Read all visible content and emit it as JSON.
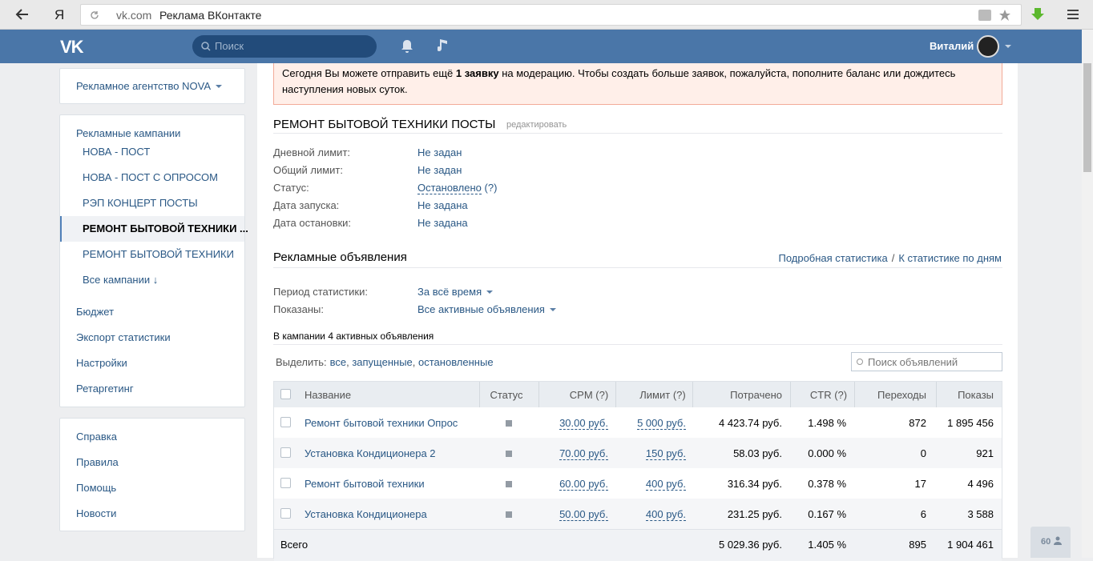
{
  "browser": {
    "logo": "Я",
    "host": "vk.com",
    "title": "Реклама ВКонтакте"
  },
  "header": {
    "logo": "VK",
    "search_placeholder": "Поиск",
    "user_name": "Виталий"
  },
  "sidebar": {
    "agency": "Рекламное агентство NOVA",
    "campaigns_title": "Рекламные кампании",
    "campaigns": [
      "НОВА - ПОСТ",
      "НОВА - ПОСТ С ОПРОСОМ",
      "РЭП КОНЦЕРТ ПОСТЫ",
      "РЕМОНТ БЫТОВОЙ ТЕХНИКИ ...",
      "РЕМОНТ БЫТОВОЙ ТЕХНИКИ",
      "Все кампании ↓"
    ],
    "menu": [
      "Бюджет",
      "Экспорт статистики",
      "Настройки",
      "Ретаргетинг"
    ],
    "links": [
      "Справка",
      "Правила",
      "Помощь",
      "Новости"
    ]
  },
  "notice": {
    "before": "Сегодня Вы можете отправить ещё ",
    "bold": "1 заявку",
    "after": " на модерацию. Чтобы создать больше заявок, пожалуйста, пополните баланс или дождитесь наступления новых суток."
  },
  "campaign": {
    "title": "РЕМОНТ БЫТОВОЙ ТЕХНИКИ ПОСТЫ",
    "edit": "редактировать",
    "info": [
      {
        "label": "Дневной лимит:",
        "value": "Не задан"
      },
      {
        "label": "Общий лимит:",
        "value": "Не задан"
      },
      {
        "label": "Статус:",
        "value": "Остановлено",
        "hint": "(?)"
      },
      {
        "label": "Дата запуска:",
        "value": "Не задана"
      },
      {
        "label": "Дата остановки:",
        "value": "Не задана"
      }
    ]
  },
  "ads": {
    "title": "Рекламные объявления",
    "stats_links": [
      "Подробная статистика",
      "К статистике по дням"
    ],
    "stats_separator": "/",
    "filters": [
      {
        "label": "Период статистики:",
        "value": "За всё время"
      },
      {
        "label": "Показаны:",
        "value": "Все активные объявления"
      }
    ],
    "summary": "В кампании 4 активных объявления",
    "select_label": "Выделить:",
    "select_links": [
      "все",
      "запущенные",
      "остановленные"
    ],
    "select_separator": ", ",
    "search_placeholder": "Поиск объявлений",
    "table": {
      "columns": [
        "Название",
        "Статус",
        "CPM (?)",
        "Лимит (?)",
        "Потрачено",
        "CTR (?)",
        "Переходы",
        "Показы"
      ],
      "rows": [
        [
          "Ремонт бытовой техники Опрос",
          "30.00 руб.",
          "5 000 руб.",
          "4 423.74 руб.",
          "1.498 %",
          "872",
          "1 895 456"
        ],
        [
          "Установка Кондиционера 2",
          "70.00 руб.",
          "150 руб.",
          "58.03 руб.",
          "0.000 %",
          "0",
          "921"
        ],
        [
          "Ремонт бытовой техники",
          "60.00 руб.",
          "400 руб.",
          "316.34 руб.",
          "0.378 %",
          "17",
          "4 496"
        ],
        [
          "Установка Кондиционера",
          "50.00 руб.",
          "400 руб.",
          "231.25 руб.",
          "0.167 %",
          "6",
          "3 588"
        ]
      ],
      "total": [
        "Всего",
        "5 029.36 руб.",
        "1.405 %",
        "895",
        "1 904 461"
      ]
    }
  },
  "counter": "60"
}
